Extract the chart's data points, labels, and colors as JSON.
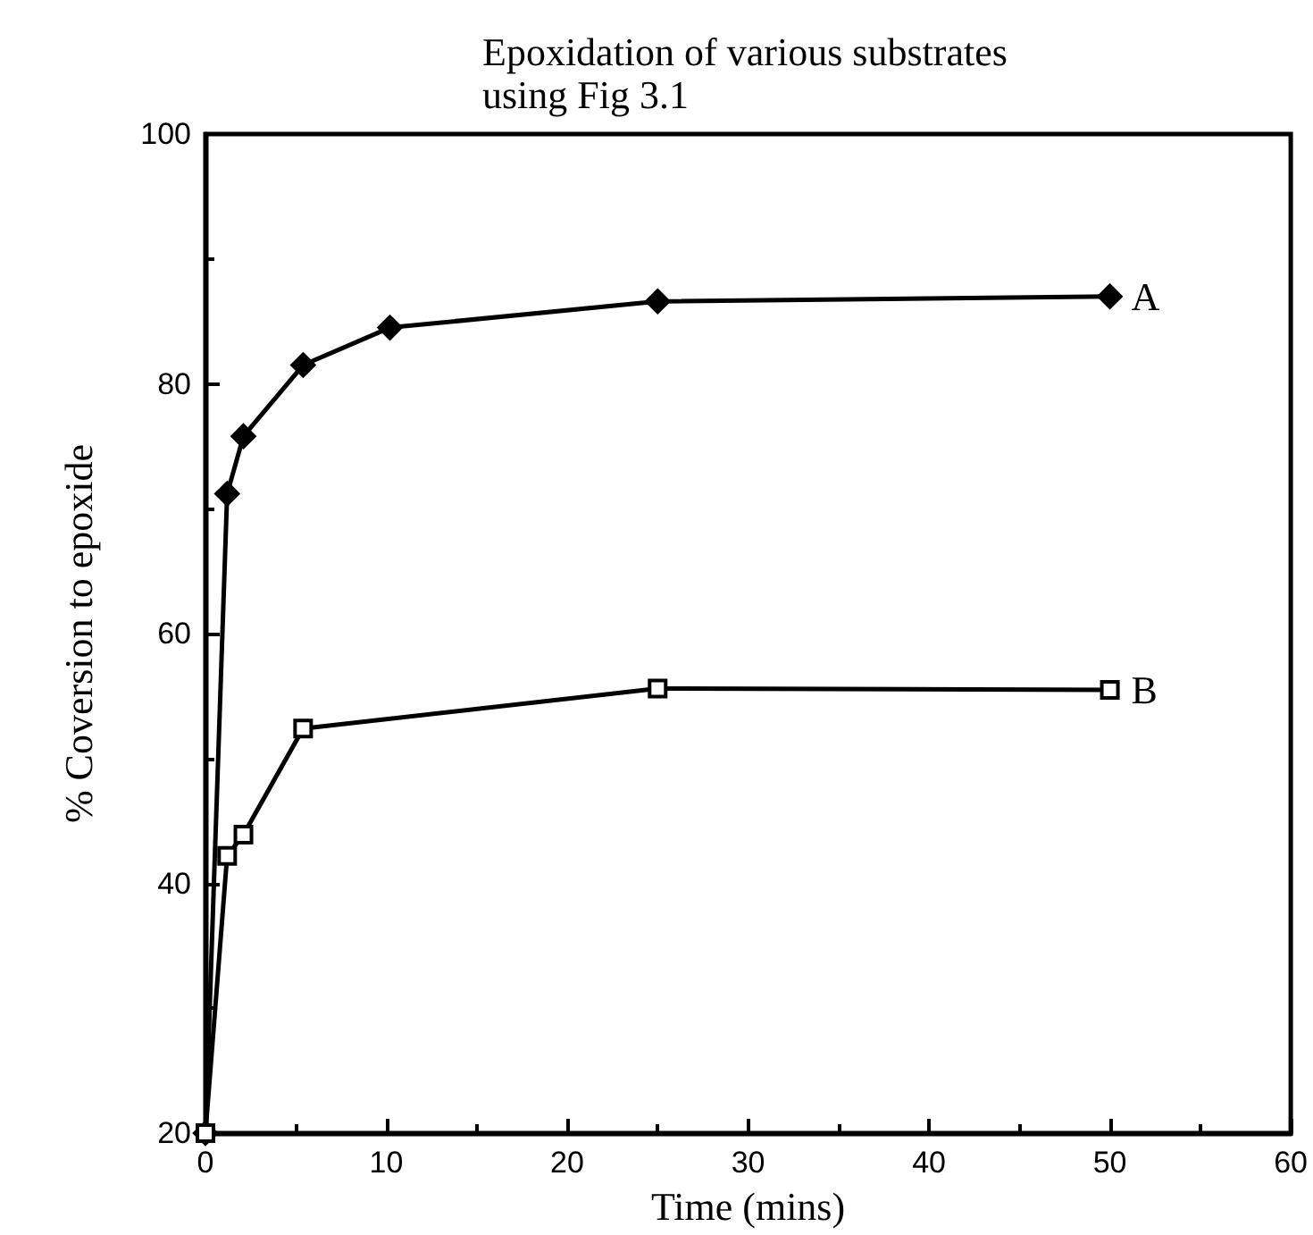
{
  "chart_data": {
    "type": "line",
    "title": "Epoxidation of various substrates\nusing Fig 3.1",
    "xlabel": "Time (mins)",
    "ylabel": "% Coversion to epoxide",
    "xlim": [
      0,
      60
    ],
    "xticks": [
      0,
      10,
      20,
      30,
      40,
      50,
      60
    ],
    "ylim": [
      20,
      100
    ],
    "yticks": [
      20,
      40,
      60,
      80,
      100
    ],
    "grid": false,
    "legend": false,
    "series": [
      {
        "name": "A",
        "color": "#000000",
        "marker": "diamond",
        "x": [
          0,
          1.2,
          2.1,
          5.4,
          10.2,
          25,
          50
        ],
        "values": [
          20,
          71.2,
          75.8,
          81.5,
          84.5,
          86.6,
          87
        ]
      },
      {
        "name": "B",
        "color": "#000000",
        "marker": "square",
        "x": [
          0,
          1.2,
          2.1,
          5.4,
          25,
          50
        ],
        "values": [
          20,
          42.2,
          43.9,
          52.4,
          55.6,
          55.5
        ]
      }
    ]
  }
}
